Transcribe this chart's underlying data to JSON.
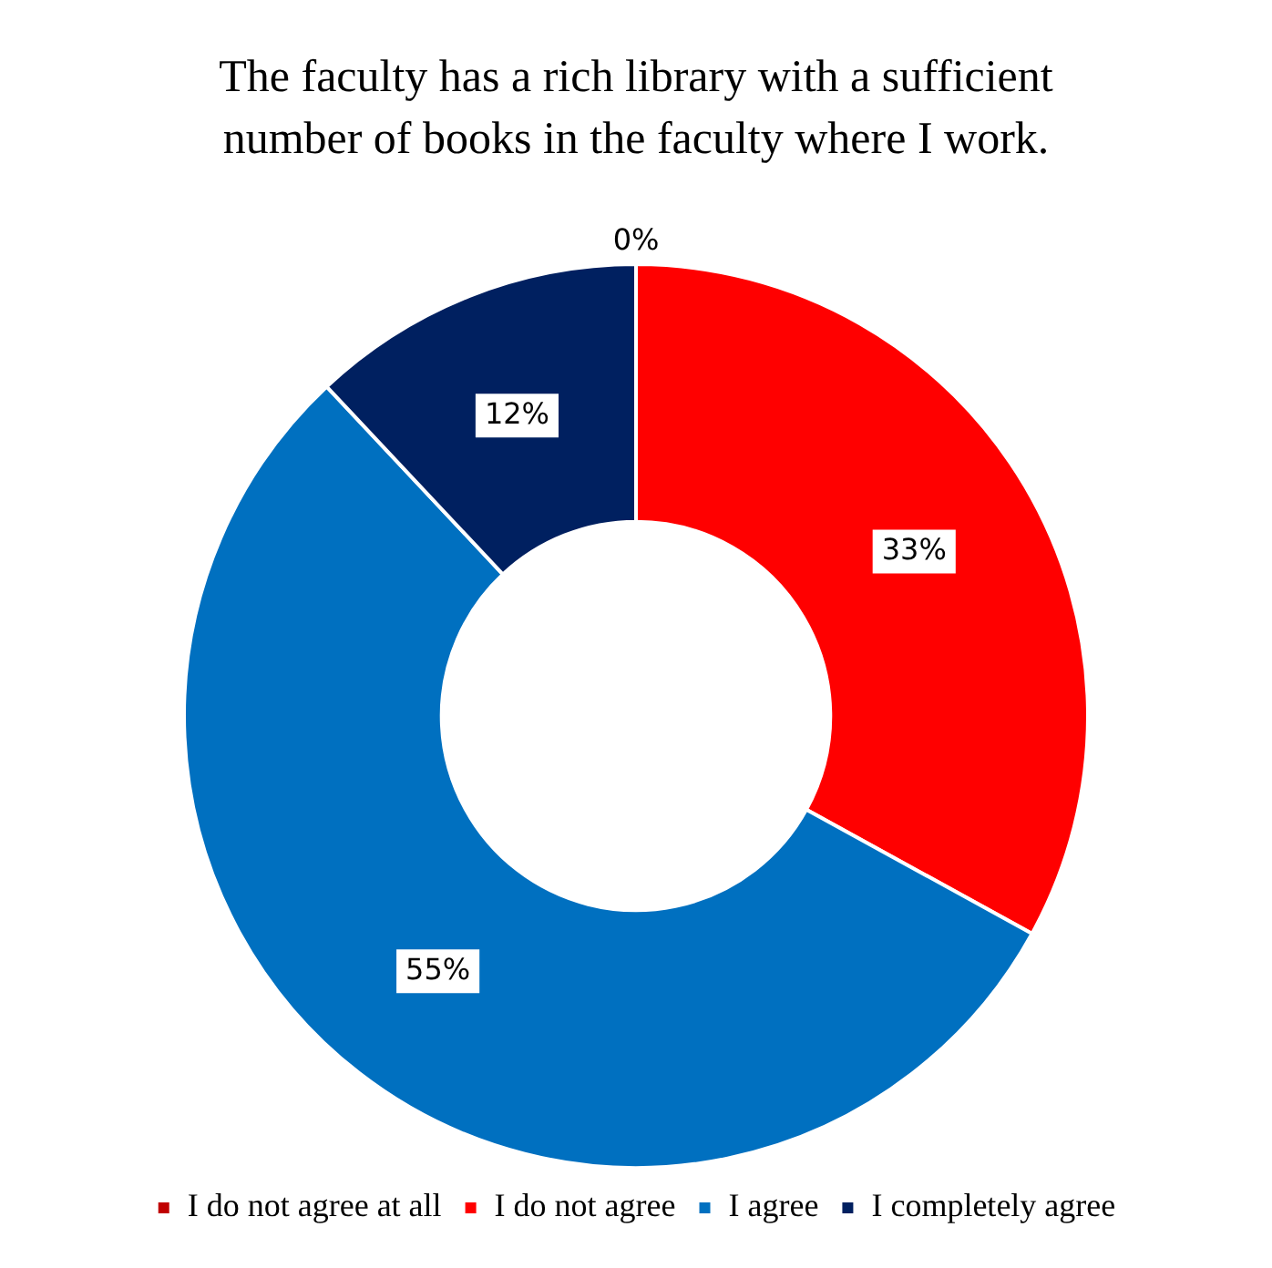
{
  "chart_data": {
    "type": "donut",
    "title": "The faculty has a rich library with a sufficient number of books in the faculty where I work.",
    "categories": [
      "I do not agree at all",
      "I do not agree",
      "I agree",
      "I completely agree"
    ],
    "values": [
      0,
      33,
      55,
      12
    ],
    "colors": [
      "#c00000",
      "#ff0000",
      "#0070c0",
      "#002060"
    ],
    "value_labels": [
      "0%",
      "33%",
      "55%",
      "12%"
    ],
    "legend": "bottom"
  }
}
